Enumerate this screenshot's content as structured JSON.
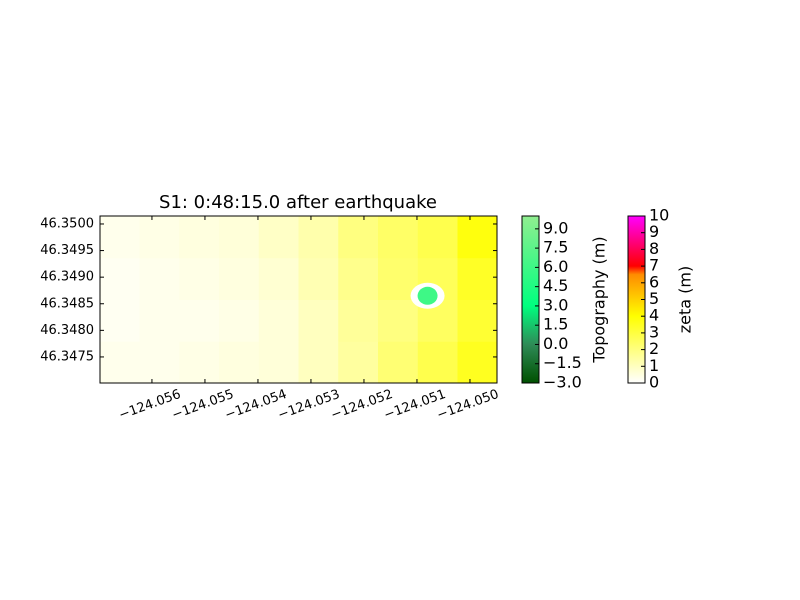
{
  "chart_data": {
    "type": "heatmap",
    "title": "S1: 0:48:15.0 after earthquake",
    "xlim": [
      -124.05698,
      -124.04949
    ],
    "ylim": [
      46.34701,
      46.35015
    ],
    "xticks": [
      {
        "value": -124.056,
        "label": "−124.056"
      },
      {
        "value": -124.055,
        "label": "−124.055"
      },
      {
        "value": -124.054,
        "label": "−124.054"
      },
      {
        "value": -124.053,
        "label": "−124.053"
      },
      {
        "value": -124.052,
        "label": "−124.052"
      },
      {
        "value": -124.051,
        "label": "−124.051"
      },
      {
        "value": -124.05,
        "label": "−124.050"
      }
    ],
    "yticks": [
      {
        "value": 46.3475,
        "label": "46.3475"
      },
      {
        "value": 46.348,
        "label": "46.3480"
      },
      {
        "value": 46.3485,
        "label": "46.3485"
      },
      {
        "value": 46.349,
        "label": "46.3490"
      },
      {
        "value": 46.3495,
        "label": "46.3495"
      },
      {
        "value": 46.35,
        "label": "46.3500"
      }
    ],
    "zeta": {
      "x": [
        -124.05661,
        -124.05586,
        -124.05511,
        -124.05436,
        -124.05361,
        -124.05286,
        -124.05211,
        -124.05136,
        -124.05061,
        -124.04986
      ],
      "y": [
        46.3474,
        46.34819,
        46.34897,
        46.34976
      ],
      "values": [
        [
          0.3,
          0.3,
          0.4,
          0.5,
          0.6,
          1.0,
          1.5,
          2.2,
          2.8,
          3.5
        ],
        [
          0.2,
          0.3,
          0.3,
          0.4,
          0.6,
          1.0,
          1.6,
          2.0,
          2.5,
          3.2
        ],
        [
          0.2,
          0.3,
          0.4,
          0.5,
          0.7,
          1.2,
          1.8,
          2.3,
          2.6,
          3.4
        ],
        [
          0.3,
          0.4,
          0.5,
          0.6,
          0.9,
          1.3,
          2.0,
          2.4,
          2.8,
          3.8
        ]
      ]
    },
    "island": {
      "lon": -124.0508,
      "lat": 46.34865,
      "topography": 6
    },
    "colorbars": [
      {
        "label": "Topography (m)",
        "ylim": [
          -3,
          10
        ],
        "colormap": [
          [
            -3,
            "#005000"
          ],
          [
            0,
            "#2e8b57"
          ],
          [
            3,
            "#00ff7f"
          ],
          [
            10,
            "#90ee90"
          ]
        ],
        "yticks": [
          {
            "value": -3,
            "label": "−3.0"
          },
          {
            "value": -1.5,
            "label": "−1.5"
          },
          {
            "value": 0,
            "label": "0.0"
          },
          {
            "value": 1.5,
            "label": "1.5"
          },
          {
            "value": 3,
            "label": "3.0"
          },
          {
            "value": 4.5,
            "label": "4.5"
          },
          {
            "value": 6,
            "label": "6.0"
          },
          {
            "value": 7.5,
            "label": "7.5"
          },
          {
            "value": 9,
            "label": "9.0"
          }
        ]
      },
      {
        "label": "zeta (m)",
        "ylim": [
          0,
          10
        ],
        "colormap": [
          [
            0,
            "#ffffff"
          ],
          [
            4,
            "#ffff00"
          ],
          [
            6.5,
            "#ff8c00"
          ],
          [
            7,
            "#ff0000"
          ],
          [
            10,
            "#ff00ff"
          ]
        ],
        "yticks": [
          0,
          1,
          2,
          3,
          4,
          5,
          6,
          7,
          8,
          9,
          10
        ]
      }
    ]
  }
}
